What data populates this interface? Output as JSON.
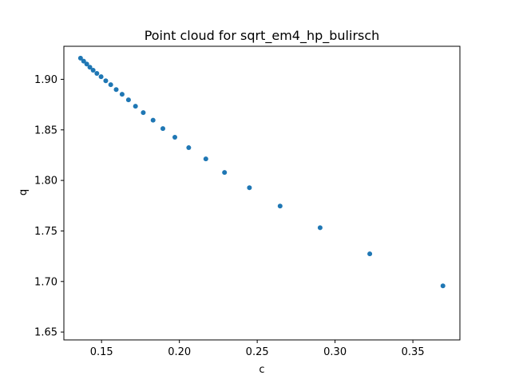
{
  "chart_data": {
    "type": "scatter",
    "title": "Point cloud for sqrt_em4_hp_bulirsch",
    "xlabel": "c",
    "ylabel": "q",
    "xlim": [
      0.1258,
      0.3802
    ],
    "ylim": [
      1.6422,
      1.9327
    ],
    "xticks": [
      0.15,
      0.2,
      0.25,
      0.3,
      0.35
    ],
    "xtick_labels": [
      "0.15",
      "0.20",
      "0.25",
      "0.30",
      "0.35"
    ],
    "yticks": [
      1.65,
      1.7,
      1.75,
      1.8,
      1.85,
      1.9
    ],
    "ytick_labels": [
      "1.65",
      "1.70",
      "1.75",
      "1.80",
      "1.85",
      "1.90"
    ],
    "grid": false,
    "marker_color": "#1f77b4",
    "x": [
      0.1365,
      0.1385,
      0.1405,
      0.1425,
      0.1446,
      0.147,
      0.1497,
      0.1527,
      0.1559,
      0.1594,
      0.1632,
      0.1673,
      0.1718,
      0.1768,
      0.1831,
      0.1894,
      0.1971,
      0.206,
      0.217,
      0.229,
      0.245,
      0.2647,
      0.2904,
      0.3223,
      0.3693
    ],
    "y": [
      1.921,
      1.918,
      1.9151,
      1.912,
      1.909,
      1.9059,
      1.9026,
      1.8986,
      1.8947,
      1.8899,
      1.8852,
      1.8797,
      1.8734,
      1.8671,
      1.8596,
      1.8513,
      1.8427,
      1.8324,
      1.8213,
      1.8079,
      1.7928,
      1.7746,
      1.7532,
      1.7274,
      1.6957
    ]
  }
}
